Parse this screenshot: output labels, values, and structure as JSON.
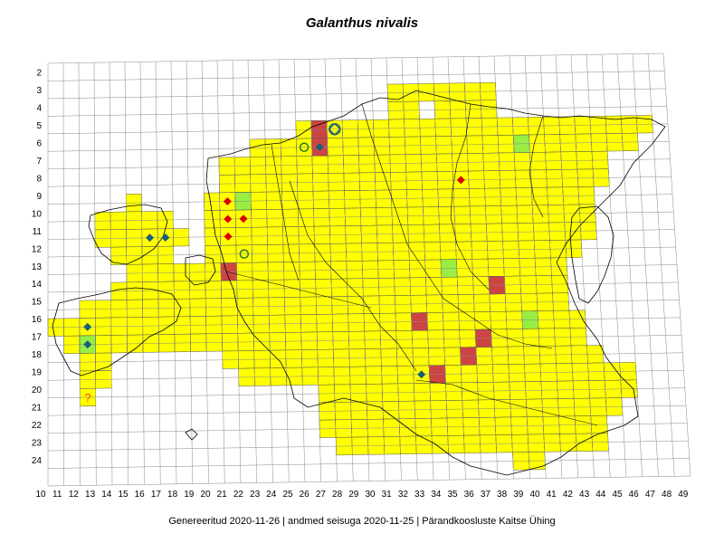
{
  "title": "Galanthus nivalis",
  "footer": "Genereeritud 2020-11-26  |  andmed seisuga 2020-11-25  |  Pärandkoosluste Kaitse Ühing",
  "row_labels": [
    "2",
    "3",
    "4",
    "5",
    "6",
    "7",
    "8",
    "9",
    "10",
    "11",
    "12",
    "13",
    "14",
    "15",
    "16",
    "17",
    "18",
    "19",
    "20",
    "21",
    "22",
    "23",
    "24"
  ],
  "col_labels": [
    "10",
    "11",
    "12",
    "13",
    "14",
    "15",
    "16",
    "17",
    "18",
    "19",
    "20",
    "21",
    "22",
    "23",
    "24",
    "25",
    "26",
    "27",
    "28",
    "29",
    "30",
    "31",
    "32",
    "33",
    "34",
    "35",
    "36",
    "37",
    "38",
    "39",
    "40",
    "41",
    "42",
    "43",
    "44",
    "45",
    "46",
    "47",
    "48",
    "49"
  ],
  "colors": {
    "occupied": "#ffff00",
    "green": "#99ee44",
    "red": "#cc4444",
    "grid": "#888888",
    "border": "#000000",
    "diamond_red": "#dd0000",
    "diamond_blue": "#1a5f7a",
    "circle": "#2a7a2a",
    "question": "#ff4400"
  },
  "filled_cells": {
    "3": [
      32,
      33,
      34,
      35,
      36,
      37,
      38
    ],
    "4": [
      32,
      33,
      35,
      36,
      37,
      38
    ],
    "5": [
      26,
      27,
      28,
      29,
      30,
      31,
      32,
      33,
      34,
      35,
      36,
      37,
      38,
      39,
      40,
      41,
      42,
      43,
      44,
      45,
      46,
      47,
      48
    ],
    "6": [
      23,
      24,
      25,
      26,
      27,
      28,
      29,
      30,
      31,
      32,
      33,
      34,
      35,
      36,
      37,
      38,
      39,
      40,
      41,
      42,
      43,
      44,
      45,
      46,
      47
    ],
    "7": [
      21,
      22,
      23,
      24,
      25,
      26,
      27,
      28,
      29,
      30,
      31,
      32,
      33,
      34,
      35,
      36,
      37,
      38,
      39,
      40,
      41,
      42,
      43,
      44,
      45
    ],
    "8": [
      21,
      22,
      23,
      24,
      25,
      26,
      27,
      28,
      29,
      30,
      31,
      32,
      33,
      34,
      35,
      36,
      37,
      38,
      39,
      40,
      41,
      42,
      43,
      44,
      45
    ],
    "9": [
      15,
      20,
      21,
      22,
      23,
      24,
      25,
      26,
      27,
      28,
      29,
      30,
      31,
      32,
      33,
      34,
      35,
      36,
      37,
      38,
      39,
      40,
      41,
      42,
      43,
      44
    ],
    "10": [
      13,
      14,
      15,
      16,
      17,
      20,
      21,
      22,
      23,
      24,
      25,
      26,
      27,
      28,
      29,
      30,
      31,
      32,
      33,
      34,
      35,
      36,
      37,
      38,
      39,
      40,
      41,
      42,
      43,
      44
    ],
    "11": [
      13,
      14,
      15,
      16,
      17,
      18,
      20,
      21,
      22,
      23,
      24,
      25,
      26,
      27,
      28,
      29,
      30,
      31,
      32,
      33,
      34,
      35,
      36,
      37,
      38,
      39,
      40,
      41,
      42,
      43,
      44
    ],
    "12": [
      14,
      15,
      16,
      17,
      20,
      21,
      22,
      23,
      24,
      25,
      26,
      27,
      28,
      29,
      30,
      31,
      32,
      33,
      34,
      35,
      36,
      37,
      38,
      39,
      40,
      41,
      42,
      43
    ],
    "13": [
      15,
      16,
      17,
      18,
      19,
      20,
      21,
      22,
      23,
      24,
      25,
      26,
      27,
      28,
      29,
      30,
      31,
      32,
      33,
      34,
      35,
      36,
      37,
      38,
      39,
      40,
      41,
      42
    ],
    "14": [
      14,
      15,
      16,
      17,
      18,
      19,
      20,
      21,
      22,
      23,
      24,
      25,
      26,
      27,
      28,
      29,
      30,
      31,
      32,
      33,
      34,
      35,
      36,
      37,
      38,
      39,
      40,
      41,
      42
    ],
    "15": [
      12,
      13,
      14,
      15,
      16,
      17,
      18,
      19,
      20,
      21,
      22,
      23,
      24,
      25,
      26,
      27,
      28,
      29,
      30,
      31,
      32,
      33,
      34,
      35,
      36,
      37,
      38,
      39,
      40,
      41,
      42
    ],
    "16": [
      10,
      11,
      12,
      13,
      14,
      15,
      16,
      17,
      18,
      19,
      20,
      21,
      22,
      23,
      24,
      25,
      26,
      27,
      28,
      29,
      30,
      31,
      32,
      33,
      34,
      35,
      36,
      37,
      38,
      39,
      40,
      41,
      42,
      43
    ],
    "17": [
      11,
      12,
      13,
      14,
      15,
      16,
      17,
      18,
      19,
      20,
      21,
      22,
      23,
      24,
      25,
      26,
      27,
      28,
      29,
      30,
      31,
      32,
      33,
      34,
      35,
      36,
      37,
      38,
      39,
      40,
      41,
      42,
      43
    ],
    "18": [
      12,
      13,
      21,
      22,
      23,
      24,
      25,
      26,
      27,
      28,
      29,
      30,
      31,
      32,
      33,
      34,
      35,
      36,
      37,
      38,
      39,
      40,
      41,
      42,
      43,
      44
    ],
    "19": [
      12,
      13,
      22,
      23,
      24,
      25,
      26,
      27,
      28,
      29,
      30,
      31,
      32,
      33,
      34,
      35,
      36,
      37,
      38,
      39,
      40,
      41,
      42,
      43,
      44,
      45,
      46
    ],
    "20": [
      12,
      27,
      28,
      29,
      30,
      31,
      32,
      33,
      34,
      35,
      36,
      37,
      38,
      39,
      40,
      41,
      42,
      43,
      44,
      45,
      46
    ],
    "21": [
      27,
      28,
      29,
      30,
      31,
      32,
      33,
      34,
      35,
      36,
      37,
      38,
      39,
      40,
      41,
      42,
      43,
      44,
      45
    ],
    "22": [
      27,
      28,
      29,
      30,
      31,
      32,
      33,
      34,
      35,
      36,
      37,
      38,
      39,
      40,
      41,
      42,
      43,
      44
    ],
    "23": [
      28,
      29,
      30,
      31,
      32,
      33,
      34,
      35,
      36,
      37,
      38,
      39,
      40,
      41,
      42,
      43,
      44
    ],
    "24": [
      39,
      40
    ]
  },
  "green_cells": [
    [
      27,
      6
    ],
    [
      22,
      9
    ],
    [
      40,
      6
    ],
    [
      35,
      13
    ],
    [
      40,
      16
    ],
    [
      12,
      17
    ]
  ],
  "red_cells": [
    [
      27,
      5
    ],
    [
      27,
      6
    ],
    [
      21,
      13
    ],
    [
      38,
      14
    ],
    [
      33,
      16
    ],
    [
      37,
      17
    ],
    [
      36,
      18
    ],
    [
      34,
      19
    ]
  ],
  "symbols": [
    {
      "type": "diamond-red",
      "col": 21,
      "row": 9
    },
    {
      "type": "diamond-red",
      "col": 21,
      "row": 10
    },
    {
      "type": "diamond-red",
      "col": 22,
      "row": 10
    },
    {
      "type": "diamond-red",
      "col": 21,
      "row": 11
    },
    {
      "type": "diamond-red",
      "col": 36,
      "row": 8
    },
    {
      "type": "diamond-blue",
      "col": 27,
      "row": 6
    },
    {
      "type": "diamond-blue",
      "col": 16,
      "row": 11
    },
    {
      "type": "diamond-blue",
      "col": 17,
      "row": 11
    },
    {
      "type": "diamond-blue",
      "col": 12,
      "row": 16
    },
    {
      "type": "diamond-blue",
      "col": 12,
      "row": 17
    },
    {
      "type": "diamond-blue",
      "col": 33,
      "row": 19
    },
    {
      "type": "circle-plus",
      "col": 28,
      "row": 5
    },
    {
      "type": "circle",
      "col": 26,
      "row": 6
    },
    {
      "type": "circle",
      "col": 22,
      "row": 12
    },
    {
      "type": "question",
      "col": 12,
      "row": 20,
      "text": "?"
    }
  ]
}
